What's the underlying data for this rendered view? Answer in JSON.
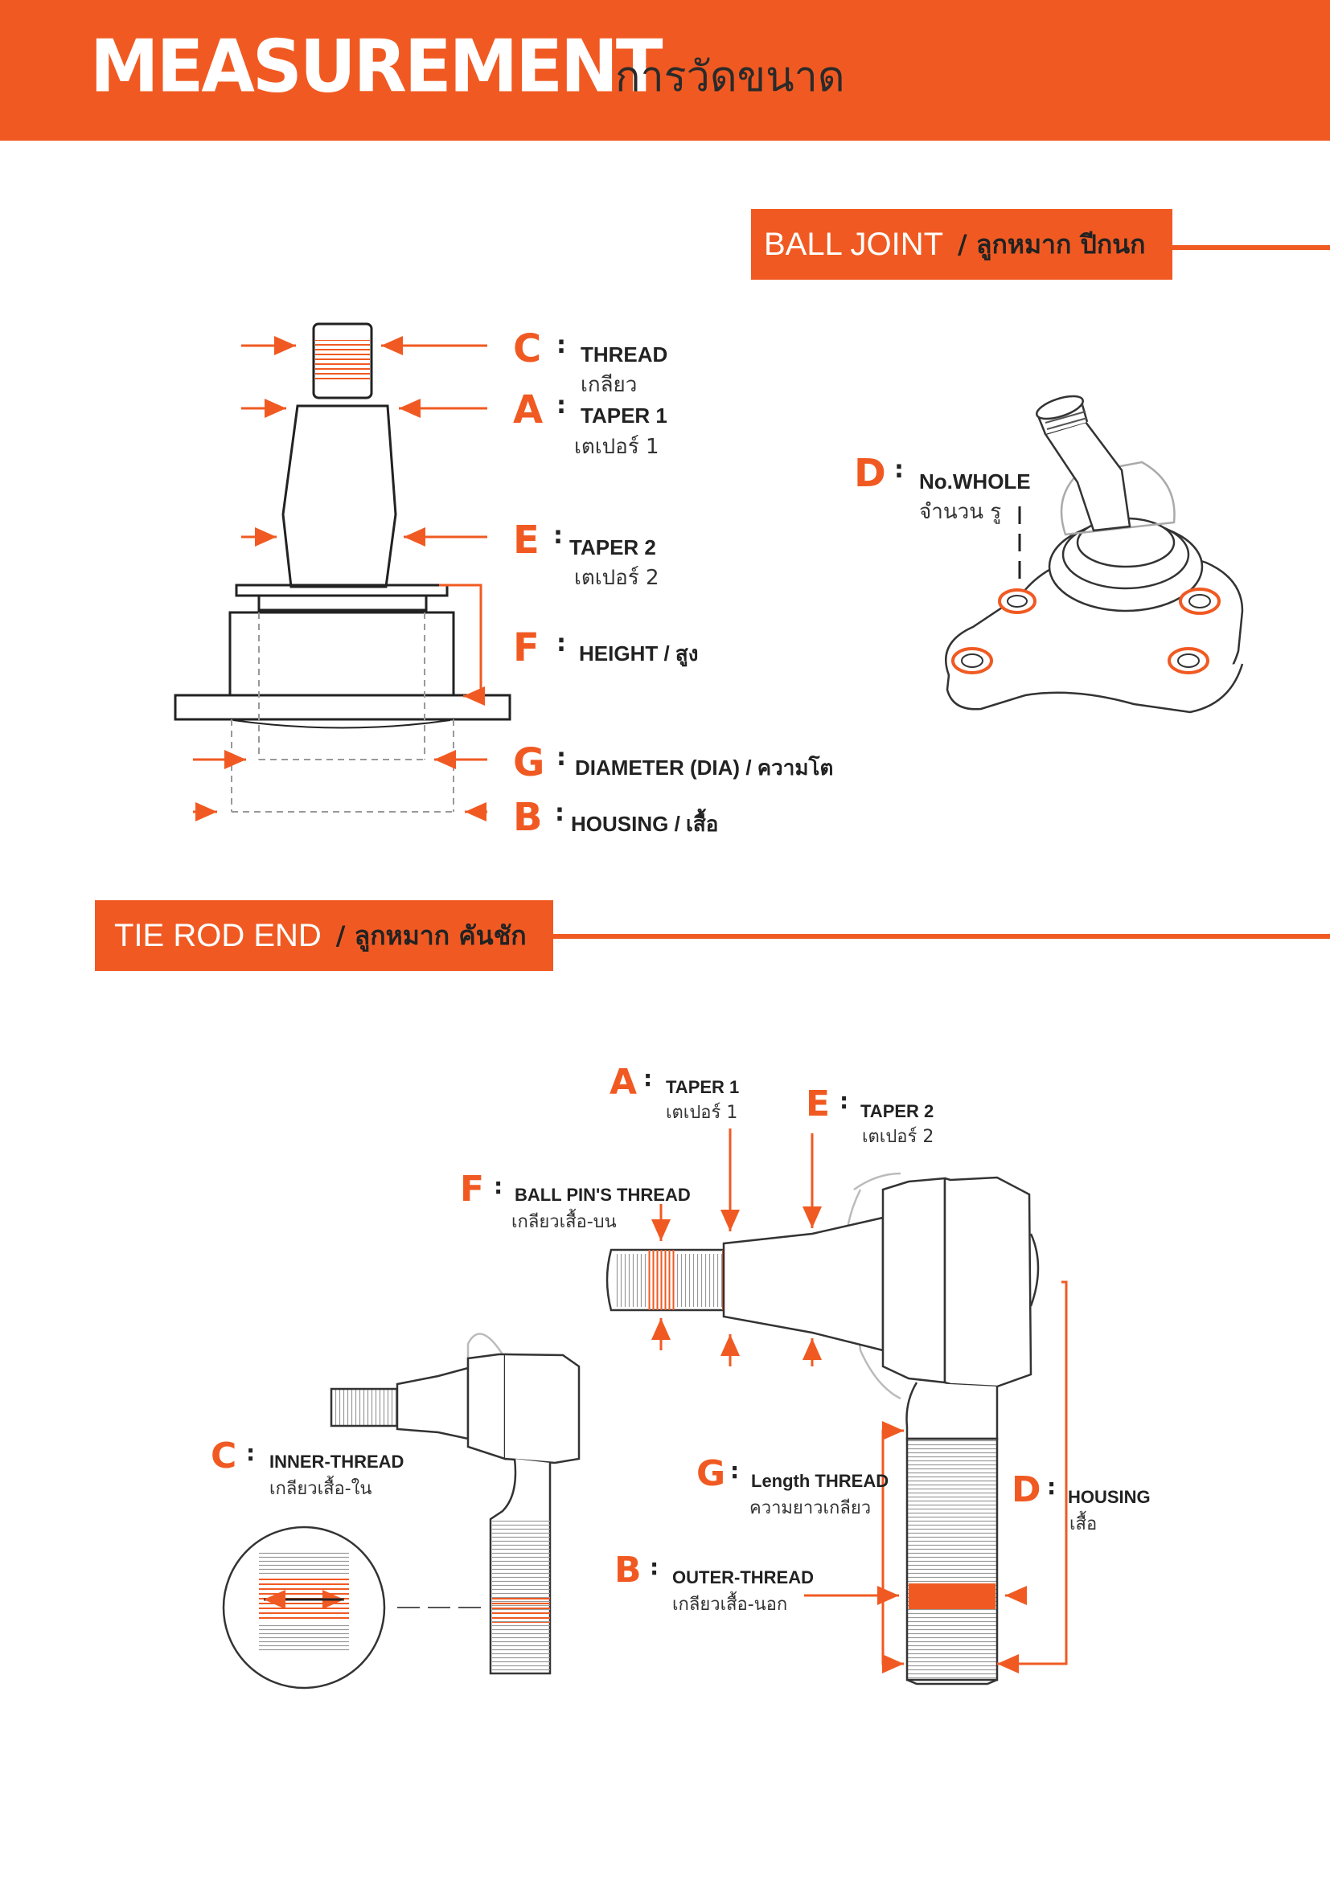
{
  "header": {
    "title": "MEASUREMENT",
    "subtitle": "การวัดขนาด"
  },
  "ball_joint": {
    "title_en": "BALL JOINT",
    "title_th": "/ ลูกหมาก ปีกนก",
    "labels": [
      {
        "letter": "C",
        "en": "THREAD",
        "th": "เกลียว"
      },
      {
        "letter": "A",
        "en": "TAPER 1",
        "th": "เตเปอร์ 1"
      },
      {
        "letter": "E",
        "en": "TAPER 2",
        "th": "เตเปอร์ 2"
      },
      {
        "letter": "F",
        "en": "HEIGHT / สูง"
      },
      {
        "letter": "G",
        "en": "DIAMETER (DIA) / ความโต"
      },
      {
        "letter": "B",
        "en": "HOUSING / เสื้อ"
      },
      {
        "letter": "D",
        "en": "No.WHOLE",
        "th": "จำนวน รู"
      }
    ]
  },
  "tie_rod_end": {
    "title_en": "TIE ROD END",
    "title_th": "/ ลูกหมาก คันชัก",
    "labels": [
      {
        "letter": "A",
        "en": "TAPER 1",
        "th": "เตเปอร์ 1"
      },
      {
        "letter": "E",
        "en": "TAPER 2",
        "th": "เตเปอร์ 2"
      },
      {
        "letter": "F",
        "en": "BALL PIN'S THREAD",
        "th": "เกลียวเสื้อ-บน"
      },
      {
        "letter": "C",
        "en": "INNER-THREAD",
        "th": "เกลียวเสื้อ-ใน"
      },
      {
        "letter": "G",
        "en": "Length THREAD",
        "th": "ความยาวเกลียว"
      },
      {
        "letter": "D",
        "en": "HOUSING",
        "th": "เสื้อ"
      },
      {
        "letter": "B",
        "en": "OUTER-THREAD",
        "th": "เกลียวเสื้อ-นอก"
      }
    ]
  },
  "colors": {
    "accent": "#f05a22",
    "ink": "#222222"
  }
}
